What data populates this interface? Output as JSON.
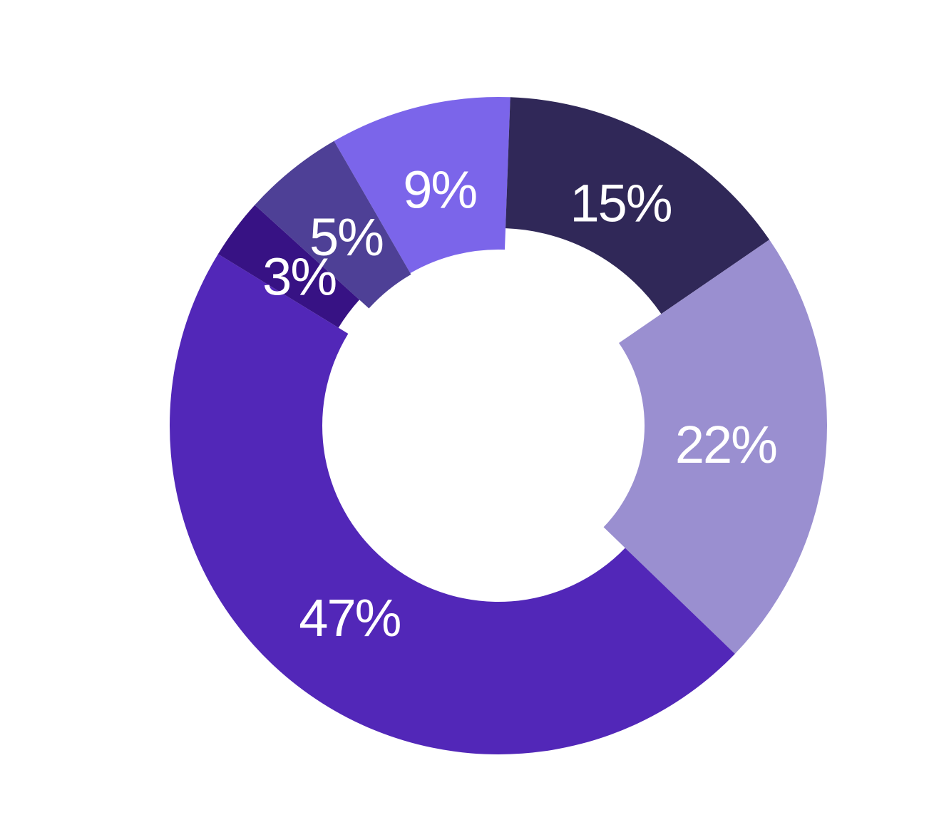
{
  "chart_data": {
    "type": "pie",
    "variant": "donut",
    "title": "",
    "legend": "none",
    "slices": [
      {
        "label": "9%",
        "value": 9,
        "color": "#7b65ea"
      },
      {
        "label": "15%",
        "value": 15,
        "color": "#302858"
      },
      {
        "label": "22%",
        "value": 22,
        "color": "#9a8fd0"
      },
      {
        "label": "47%",
        "value": 47,
        "color": "#5227b8"
      },
      {
        "label": "3%",
        "value": 3,
        "color": "#371284"
      },
      {
        "label": "5%",
        "value": 5,
        "color": "#4e4096"
      }
    ]
  }
}
